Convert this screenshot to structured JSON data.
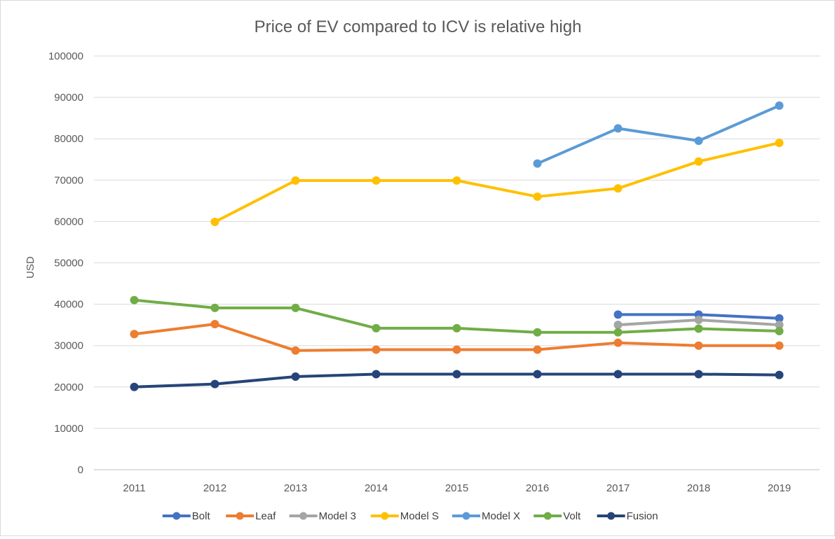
{
  "chart_data": {
    "type": "line",
    "title": "Price of EV compared to ICV is relative high",
    "xlabel": "",
    "ylabel": "USD",
    "ylim": [
      0,
      100000
    ],
    "yticks": [
      "0",
      "10000",
      "20000",
      "30000",
      "40000",
      "50000",
      "60000",
      "70000",
      "80000",
      "90000",
      "100000"
    ],
    "categories": [
      "2011",
      "2012",
      "2013",
      "2014",
      "2015",
      "2016",
      "2017",
      "2018",
      "2019"
    ],
    "grid": "horizontal",
    "legend_position": "bottom",
    "series": [
      {
        "name": "Bolt",
        "color": "#4472C4",
        "values": [
          null,
          null,
          null,
          null,
          null,
          null,
          37500,
          37500,
          36600
        ]
      },
      {
        "name": "Leaf",
        "color": "#ED7D31",
        "values": [
          32780,
          35200,
          28800,
          29010,
          29010,
          29010,
          30680,
          29990,
          29990
        ]
      },
      {
        "name": "Model 3",
        "color": "#A5A5A5",
        "values": [
          null,
          null,
          null,
          null,
          null,
          null,
          35000,
          36200,
          35000
        ]
      },
      {
        "name": "Model S",
        "color": "#FFC000",
        "values": [
          null,
          59900,
          69900,
          69900,
          69900,
          66000,
          68000,
          74500,
          79000
        ]
      },
      {
        "name": "Model X",
        "color": "#5B9BD5",
        "values": [
          null,
          null,
          null,
          null,
          null,
          74000,
          82500,
          79500,
          88000
        ]
      },
      {
        "name": "Volt",
        "color": "#70AD47",
        "values": [
          41000,
          39100,
          39100,
          34200,
          34200,
          33200,
          33200,
          34100,
          33500
        ]
      },
      {
        "name": "Fusion",
        "color": "#264478",
        "values": [
          20000,
          20700,
          22500,
          23100,
          23100,
          23100,
          23100,
          23100,
          22900
        ]
      }
    ]
  }
}
